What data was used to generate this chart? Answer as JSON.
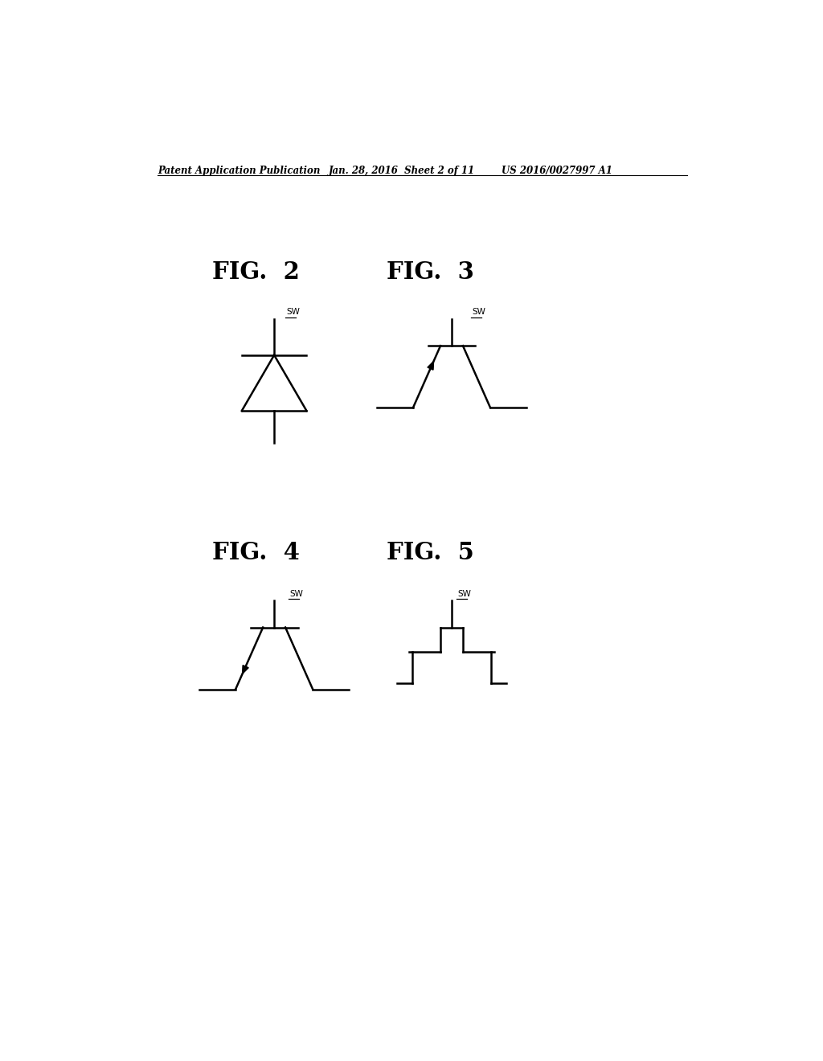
{
  "background_color": "#ffffff",
  "header_left": "Patent Application Publication",
  "header_mid": "Jan. 28, 2016  Sheet 2 of 11",
  "header_right": "US 2016/0027997 A1",
  "fig2_label": "FIG.  2",
  "fig3_label": "FIG.  3",
  "fig4_label": "FIG.  4",
  "fig5_label": "FIG.  5",
  "sw_label": "SW"
}
